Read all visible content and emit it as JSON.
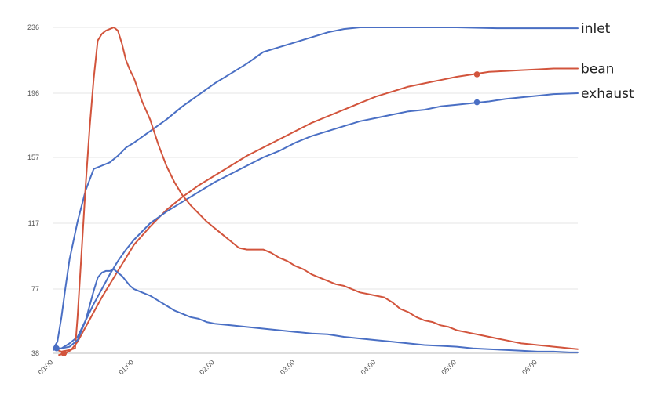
{
  "chart_data": {
    "type": "line",
    "title": "",
    "xlabel": "",
    "ylabel": "",
    "xlim": [
      0,
      6.5
    ],
    "ylim": [
      38,
      236
    ],
    "y_ticks": [
      38,
      77,
      117,
      157,
      196,
      236
    ],
    "x_ticks": [
      0,
      1,
      2,
      3,
      4,
      5,
      6
    ],
    "x_tick_labels": [
      "00:00",
      "01:00",
      "02:00",
      "03:00",
      "04:00",
      "05:00",
      "06:00"
    ],
    "grid": "horizontal",
    "colors": {
      "blue": "#4a6fc4",
      "red": "#d2543c"
    },
    "series": [
      {
        "name": "inlet",
        "color": "#4a6fc4",
        "points": [
          [
            0.0,
            41
          ],
          [
            0.05,
            45
          ],
          [
            0.1,
            60
          ],
          [
            0.15,
            78
          ],
          [
            0.2,
            95
          ],
          [
            0.3,
            118
          ],
          [
            0.4,
            137
          ],
          [
            0.5,
            150
          ],
          [
            0.6,
            152
          ],
          [
            0.7,
            154
          ],
          [
            0.8,
            158
          ],
          [
            0.9,
            163
          ],
          [
            1.0,
            166
          ],
          [
            1.2,
            173
          ],
          [
            1.4,
            180
          ],
          [
            1.6,
            188
          ],
          [
            1.8,
            195
          ],
          [
            2.0,
            202
          ],
          [
            2.2,
            208
          ],
          [
            2.4,
            214
          ],
          [
            2.6,
            221
          ],
          [
            2.8,
            224
          ],
          [
            3.0,
            227
          ],
          [
            3.2,
            230
          ],
          [
            3.4,
            233
          ],
          [
            3.6,
            235
          ],
          [
            3.8,
            236
          ],
          [
            4.0,
            236
          ],
          [
            4.5,
            236
          ],
          [
            5.0,
            236
          ],
          [
            5.5,
            235.5
          ],
          [
            6.0,
            235.5
          ],
          [
            6.5,
            235.5
          ]
        ]
      },
      {
        "name": "bean",
        "color": "#d2543c",
        "points": [
          [
            0.07,
            37
          ],
          [
            0.15,
            38
          ],
          [
            0.22,
            40
          ],
          [
            0.3,
            45
          ],
          [
            0.4,
            54
          ],
          [
            0.5,
            63
          ],
          [
            0.6,
            72
          ],
          [
            0.7,
            80
          ],
          [
            0.8,
            88
          ],
          [
            0.9,
            96
          ],
          [
            1.0,
            104
          ],
          [
            1.2,
            115
          ],
          [
            1.4,
            125
          ],
          [
            1.6,
            133
          ],
          [
            1.8,
            140
          ],
          [
            2.0,
            146
          ],
          [
            2.2,
            152
          ],
          [
            2.4,
            158
          ],
          [
            2.6,
            163
          ],
          [
            2.8,
            168
          ],
          [
            3.0,
            173
          ],
          [
            3.2,
            178
          ],
          [
            3.4,
            182
          ],
          [
            3.6,
            186
          ],
          [
            3.8,
            190
          ],
          [
            4.0,
            194
          ],
          [
            4.2,
            197
          ],
          [
            4.4,
            200
          ],
          [
            4.6,
            202
          ],
          [
            4.8,
            204
          ],
          [
            5.0,
            206
          ],
          [
            5.2,
            207.5
          ],
          [
            5.4,
            209
          ],
          [
            5.6,
            209.5
          ],
          [
            5.8,
            210
          ],
          [
            6.0,
            210.5
          ],
          [
            6.2,
            211
          ],
          [
            6.5,
            211
          ]
        ]
      },
      {
        "name": "exhaust",
        "color": "#4a6fc4",
        "points": [
          [
            0.0,
            40
          ],
          [
            0.1,
            41
          ],
          [
            0.2,
            44
          ],
          [
            0.3,
            48
          ],
          [
            0.4,
            58
          ],
          [
            0.5,
            68
          ],
          [
            0.6,
            77
          ],
          [
            0.7,
            86
          ],
          [
            0.8,
            94
          ],
          [
            0.9,
            101
          ],
          [
            1.0,
            107
          ],
          [
            1.2,
            117
          ],
          [
            1.4,
            124
          ],
          [
            1.6,
            130
          ],
          [
            1.8,
            136
          ],
          [
            2.0,
            142
          ],
          [
            2.2,
            147
          ],
          [
            2.4,
            152
          ],
          [
            2.6,
            157
          ],
          [
            2.8,
            161
          ],
          [
            3.0,
            166
          ],
          [
            3.2,
            170
          ],
          [
            3.4,
            173
          ],
          [
            3.6,
            176
          ],
          [
            3.8,
            179
          ],
          [
            4.0,
            181
          ],
          [
            4.2,
            183
          ],
          [
            4.4,
            185
          ],
          [
            4.6,
            186
          ],
          [
            4.8,
            188
          ],
          [
            5.0,
            189
          ],
          [
            5.2,
            190
          ],
          [
            5.4,
            191
          ],
          [
            5.6,
            192.5
          ],
          [
            5.8,
            193.5
          ],
          [
            6.0,
            194.5
          ],
          [
            6.2,
            195.5
          ],
          [
            6.5,
            196
          ]
        ]
      },
      {
        "name": "",
        "color": "#d2543c",
        "points": [
          [
            0.0,
            41
          ],
          [
            0.1,
            39
          ],
          [
            0.2,
            40
          ],
          [
            0.27,
            41
          ],
          [
            0.3,
            60
          ],
          [
            0.35,
            100
          ],
          [
            0.4,
            140
          ],
          [
            0.45,
            175
          ],
          [
            0.5,
            205
          ],
          [
            0.55,
            228
          ],
          [
            0.6,
            232
          ],
          [
            0.65,
            234
          ],
          [
            0.7,
            235
          ],
          [
            0.75,
            236
          ],
          [
            0.8,
            234
          ],
          [
            0.85,
            226
          ],
          [
            0.9,
            216
          ],
          [
            0.95,
            210
          ],
          [
            1.0,
            205
          ],
          [
            1.05,
            198
          ],
          [
            1.1,
            191
          ],
          [
            1.2,
            180
          ],
          [
            1.3,
            165
          ],
          [
            1.4,
            152
          ],
          [
            1.5,
            142
          ],
          [
            1.6,
            134
          ],
          [
            1.7,
            128
          ],
          [
            1.8,
            123
          ],
          [
            1.9,
            118
          ],
          [
            2.0,
            114
          ],
          [
            2.1,
            110
          ],
          [
            2.2,
            106
          ],
          [
            2.3,
            102
          ],
          [
            2.4,
            101
          ],
          [
            2.5,
            101
          ],
          [
            2.6,
            101
          ],
          [
            2.7,
            99
          ],
          [
            2.8,
            96
          ],
          [
            2.9,
            94
          ],
          [
            3.0,
            91
          ],
          [
            3.1,
            89
          ],
          [
            3.2,
            86
          ],
          [
            3.3,
            84
          ],
          [
            3.4,
            82
          ],
          [
            3.5,
            80
          ],
          [
            3.6,
            79
          ],
          [
            3.7,
            77
          ],
          [
            3.8,
            75
          ],
          [
            3.9,
            74
          ],
          [
            4.0,
            73
          ],
          [
            4.1,
            72
          ],
          [
            4.2,
            69
          ],
          [
            4.3,
            65
          ],
          [
            4.4,
            63
          ],
          [
            4.5,
            60
          ],
          [
            4.6,
            58
          ],
          [
            4.7,
            57
          ],
          [
            4.8,
            55
          ],
          [
            4.9,
            54
          ],
          [
            5.0,
            52
          ],
          [
            5.1,
            51
          ],
          [
            5.2,
            50
          ],
          [
            5.3,
            49
          ],
          [
            5.4,
            48
          ],
          [
            5.5,
            47
          ],
          [
            5.6,
            46
          ],
          [
            5.7,
            45
          ],
          [
            5.8,
            44
          ],
          [
            5.9,
            43.5
          ],
          [
            6.0,
            43
          ],
          [
            6.1,
            42.5
          ],
          [
            6.2,
            42
          ],
          [
            6.3,
            41.5
          ],
          [
            6.4,
            41
          ],
          [
            6.5,
            40.5
          ]
        ]
      },
      {
        "name": "",
        "color": "#4a6fc4",
        "points": [
          [
            0.0,
            41
          ],
          [
            0.1,
            41
          ],
          [
            0.2,
            42
          ],
          [
            0.3,
            46
          ],
          [
            0.4,
            58
          ],
          [
            0.5,
            76
          ],
          [
            0.55,
            84
          ],
          [
            0.6,
            87
          ],
          [
            0.65,
            88
          ],
          [
            0.7,
            88
          ],
          [
            0.75,
            89
          ],
          [
            0.8,
            87
          ],
          [
            0.85,
            85
          ],
          [
            0.9,
            82
          ],
          [
            0.95,
            79
          ],
          [
            1.0,
            77
          ],
          [
            1.1,
            75
          ],
          [
            1.2,
            73
          ],
          [
            1.3,
            70
          ],
          [
            1.4,
            67
          ],
          [
            1.5,
            64
          ],
          [
            1.6,
            62
          ],
          [
            1.7,
            60
          ],
          [
            1.8,
            59
          ],
          [
            1.9,
            57
          ],
          [
            2.0,
            56
          ],
          [
            2.2,
            55
          ],
          [
            2.4,
            54
          ],
          [
            2.6,
            53
          ],
          [
            2.8,
            52
          ],
          [
            3.0,
            51
          ],
          [
            3.2,
            50
          ],
          [
            3.4,
            49.5
          ],
          [
            3.6,
            48
          ],
          [
            3.8,
            47
          ],
          [
            4.0,
            46
          ],
          [
            4.2,
            45
          ],
          [
            4.4,
            44
          ],
          [
            4.6,
            43
          ],
          [
            4.8,
            42.5
          ],
          [
            5.0,
            42
          ],
          [
            5.2,
            41
          ],
          [
            5.4,
            40.5
          ],
          [
            5.6,
            40
          ],
          [
            5.8,
            39.5
          ],
          [
            6.0,
            39
          ],
          [
            6.2,
            39
          ],
          [
            6.4,
            38.5
          ],
          [
            6.5,
            38.5
          ]
        ]
      }
    ],
    "markers": [
      {
        "series": "inlet",
        "x": 0.04,
        "y": 41
      },
      {
        "series": "bean",
        "x": 0.13,
        "y": 38
      },
      {
        "series": "bean",
        "x": 5.25,
        "y": 207.5
      },
      {
        "series": "exhaust",
        "x": 5.25,
        "y": 190.5
      }
    ]
  }
}
